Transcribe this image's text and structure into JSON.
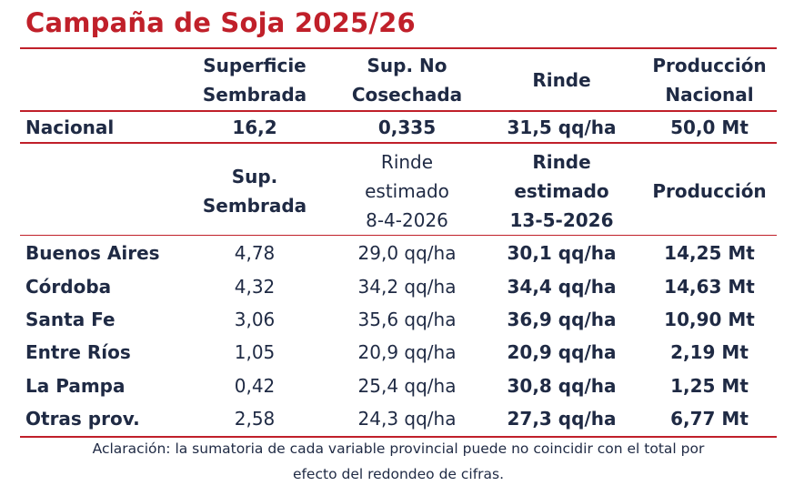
{
  "title": "Campaña de Soja 2025/26",
  "national": {
    "headers": [
      [
        "Superficie",
        "Sembrada"
      ],
      [
        "Sup. No",
        "Cosechada"
      ],
      [
        "Rinde"
      ],
      [
        "Producción",
        "Nacional"
      ]
    ],
    "row": {
      "label": "Nacional",
      "values": [
        "16,2",
        "0,335",
        "31,5 qq/ha",
        "50,0 Mt"
      ]
    }
  },
  "provincial": {
    "headers": [
      [
        "Sup.",
        "Sembrada"
      ],
      [
        "Rinde",
        "estimado",
        "8-4-2026"
      ],
      [
        "Rinde",
        "estimado",
        "13-5-2026"
      ],
      [
        "Producción"
      ]
    ],
    "rows": [
      {
        "label": "Buenos Aires",
        "values": [
          "4,78",
          "29,0 qq/ha",
          "30,1 qq/ha",
          "14,25 Mt"
        ]
      },
      {
        "label": "Córdoba",
        "values": [
          "4,32",
          "34,2 qq/ha",
          "34,4 qq/ha",
          "14,63 Mt"
        ]
      },
      {
        "label": "Santa Fe",
        "values": [
          "3,06",
          "35,6 qq/ha",
          "36,9 qq/ha",
          "10,90 Mt"
        ]
      },
      {
        "label": "Entre Ríos",
        "values": [
          "1,05",
          "20,9 qq/ha",
          "20,9 qq/ha",
          "2,19 Mt"
        ]
      },
      {
        "label": "La Pampa",
        "values": [
          "0,42",
          "25,4 qq/ha",
          "30,8 qq/ha",
          "1,25 Mt"
        ]
      },
      {
        "label": "Otras prov.",
        "values": [
          "2,58",
          "24,3 qq/ha",
          "27,3 qq/ha",
          "6,77 Mt"
        ]
      }
    ]
  },
  "note": [
    "Aclaración: la sumatoria de cada variable provincial puede no coincidir con el total por",
    "efecto del redondeo de cifras."
  ],
  "colors": {
    "accent": "#c0202a",
    "text": "#1f2a44"
  }
}
